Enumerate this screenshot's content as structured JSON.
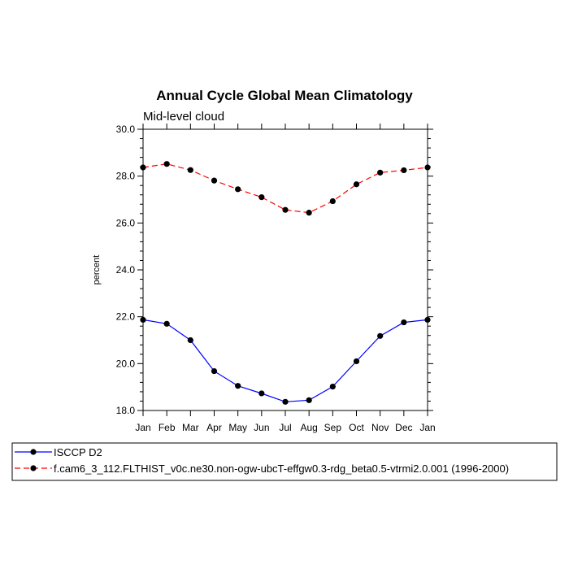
{
  "chart_data": {
    "type": "line",
    "title": "Annual Cycle Global Mean Climatology",
    "subtitle": "Mid-level cloud",
    "xlabel": "",
    "ylabel": "percent",
    "ylim": [
      18.0,
      30.0
    ],
    "yticks": [
      "18.0",
      "20.0",
      "22.0",
      "24.0",
      "26.0",
      "28.0",
      "30.0"
    ],
    "categories": [
      "Jan",
      "Feb",
      "Mar",
      "Apr",
      "May",
      "Jun",
      "Jul",
      "Aug",
      "Sep",
      "Oct",
      "Nov",
      "Dec",
      "Jan"
    ],
    "grid": false,
    "legend_position": "bottom",
    "series": [
      {
        "name": "ISCCP D2",
        "color": "#0000ff",
        "dash": "solid",
        "values": [
          21.87,
          21.7,
          21.0,
          19.68,
          19.05,
          18.73,
          18.37,
          18.44,
          19.02,
          20.1,
          21.18,
          21.76,
          21.87
        ]
      },
      {
        "name": "f.cam6_3_112.FLTHIST_v0c.ne30.non-ogw-ubcT-effgw0.3-rdg_beta0.5-vtrmi2.0.001 (1996-2000)",
        "color": "#ff0000",
        "dash": "dashed",
        "values": [
          28.37,
          28.52,
          28.26,
          27.81,
          27.44,
          27.1,
          26.56,
          26.44,
          26.93,
          27.65,
          28.15,
          28.25,
          28.37
        ]
      }
    ]
  }
}
